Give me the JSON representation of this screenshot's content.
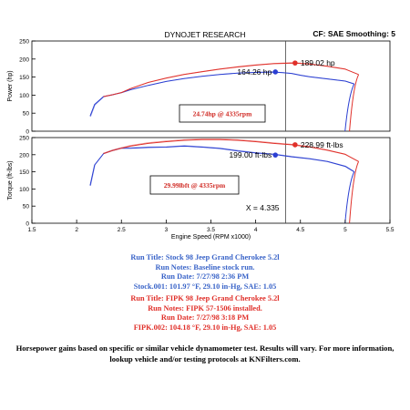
{
  "header": {
    "title": "DYNOJET RESEARCH",
    "settings": "CF: SAE  Smoothing: 5"
  },
  "chart_data": [
    {
      "type": "line",
      "panel": "power",
      "ylabel": "Power (hp)",
      "ylim": [
        0,
        250
      ],
      "yticks": [
        "0",
        "50",
        "100",
        "150",
        "200",
        "250"
      ],
      "grid": false,
      "series": [
        {
          "color": "#2b3fd2",
          "x": [
            2.15,
            2.2,
            2.3,
            2.4,
            2.5,
            2.6,
            2.8,
            3.0,
            3.2,
            3.4,
            3.6,
            3.8,
            4.0,
            4.2,
            4.3,
            4.4,
            4.5,
            4.6,
            4.8,
            5.0,
            5.1
          ],
          "y": [
            42,
            74,
            96,
            101,
            107,
            115,
            127,
            138,
            146,
            152,
            157,
            161,
            163,
            164,
            162,
            160,
            155,
            151,
            145,
            139,
            131
          ]
        },
        {
          "color": "#e0302a",
          "x": [
            2.3,
            2.4,
            2.5,
            2.6,
            2.8,
            3.0,
            3.2,
            3.4,
            3.6,
            3.8,
            4.0,
            4.2,
            4.3,
            4.4,
            4.5,
            4.6,
            4.8,
            5.0,
            5.15
          ],
          "y": [
            96,
            101,
            107,
            118,
            135,
            147,
            157,
            165,
            172,
            178,
            183,
            187,
            188,
            189,
            188,
            186,
            180,
            172,
            157
          ]
        }
      ],
      "delta_note": "24.74hp @ 4335rpm",
      "markers": [
        {
          "label": "164.26 hp",
          "color": "#2b3fd2",
          "x": 4.22,
          "y": 164.26
        },
        {
          "label": "189.02 hp",
          "color": "#e0302a",
          "x": 4.44,
          "y": 189.02
        }
      ]
    },
    {
      "type": "line",
      "panel": "torque",
      "ylabel": "Torque (ft-lbs)",
      "xlabel": "Engine Speed (RPM x1000)",
      "xlim": [
        1.5,
        5.5
      ],
      "ylim": [
        0,
        250
      ],
      "xticks": [
        "1.5",
        "2",
        "2.5",
        "3",
        "3.5",
        "4",
        "4.5",
        "5",
        "5.5"
      ],
      "yticks": [
        "0",
        "50",
        "100",
        "150",
        "200",
        "250"
      ],
      "grid": false,
      "series": [
        {
          "color": "#2b3fd2",
          "x": [
            2.15,
            2.2,
            2.3,
            2.4,
            2.5,
            2.6,
            2.8,
            3.0,
            3.2,
            3.4,
            3.6,
            3.8,
            4.0,
            4.2,
            4.4,
            4.6,
            4.8,
            5.0,
            5.1
          ],
          "y": [
            110,
            170,
            203,
            212,
            219,
            219,
            221,
            222,
            225,
            222,
            218,
            211,
            205,
            201,
            194,
            188,
            180,
            166,
            150
          ]
        },
        {
          "color": "#e0302a",
          "x": [
            2.3,
            2.4,
            2.5,
            2.6,
            2.8,
            3.0,
            3.2,
            3.4,
            3.6,
            3.8,
            4.0,
            4.2,
            4.3,
            4.4,
            4.6,
            4.8,
            5.0,
            5.15
          ],
          "y": [
            203,
            212,
            219,
            225,
            233,
            238,
            242,
            244,
            244,
            242,
            238,
            233,
            231,
            229,
            223,
            213,
            201,
            180
          ]
        }
      ],
      "delta_note": "29.99lbft @ 4335rpm",
      "markers": [
        {
          "label": "199.00 ft-lbs",
          "color": "#2b3fd2",
          "x": 4.22,
          "y": 199.0
        },
        {
          "label": "228.99 ft-lbs",
          "color": "#e0302a",
          "x": 4.44,
          "y": 228.99
        }
      ],
      "cursor": {
        "label": "X = 4.335",
        "x": 4.335
      }
    }
  ],
  "runs": {
    "stock": {
      "title": "Run Title: Stock 98 Jeep Grand Cherokee 5.2l",
      "notes": "Run Notes: Baseline stock run.",
      "date": "Run Date: 7/27/98 2:36 PM",
      "file": "Stock.001: 101.97 °F, 29.10 in-Hg, SAE: 1.05"
    },
    "fipk": {
      "title": "Run Title: FIPK 98 Jeep Grand Cherokee 5.2l",
      "notes": "Run Notes: FIPK 57-1506 installed.",
      "date": "Run Date: 7/27/98 3:18 PM",
      "file": "FIPK.002: 104.18 °F, 29.10 in-Hg, SAE: 1.05"
    }
  },
  "disclaimer": "Horsepower gains based on specific or similar vehicle dynamometer test. Results will vary. For more information, lookup vehicle and/or testing protocols at KNFilters.com."
}
